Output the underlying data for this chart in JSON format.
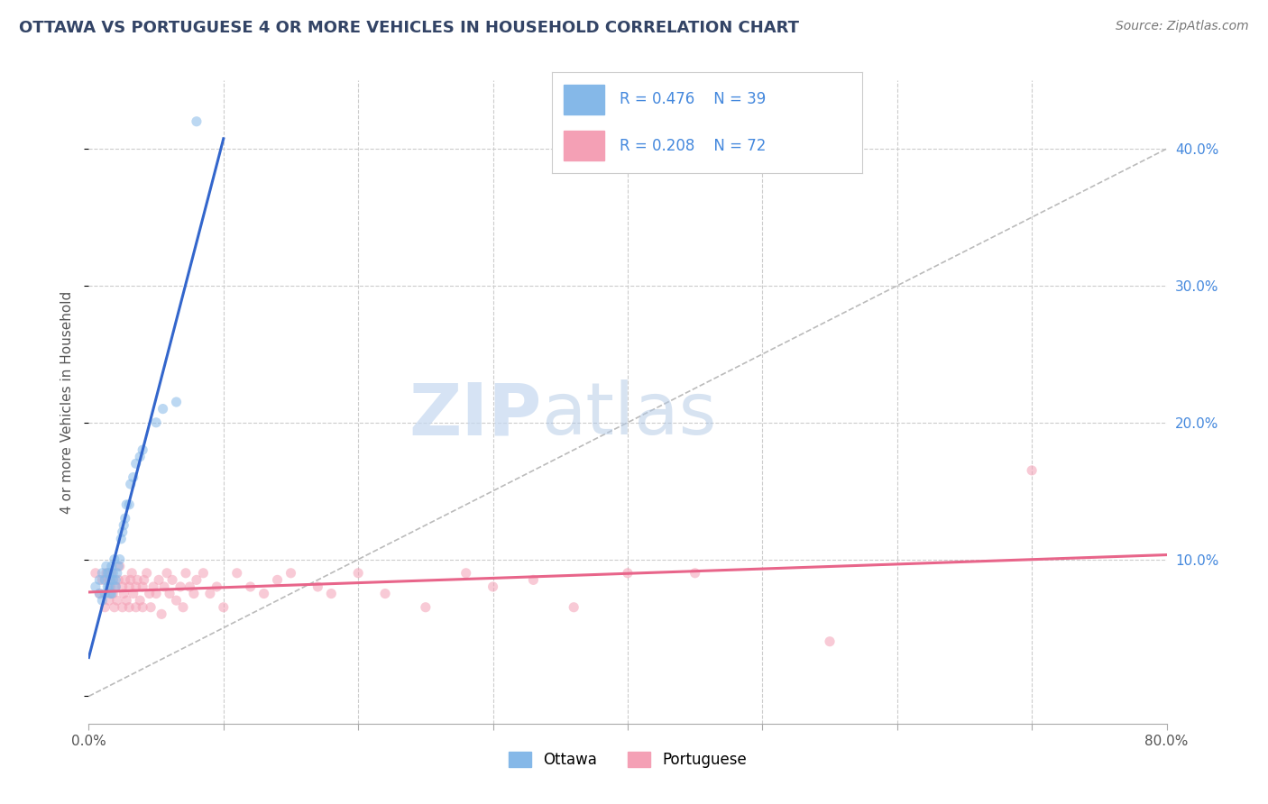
{
  "title": "OTTAWA VS PORTUGUESE 4 OR MORE VEHICLES IN HOUSEHOLD CORRELATION CHART",
  "source": "Source: ZipAtlas.com",
  "ylabel": "4 or more Vehicles in Household",
  "xlim": [
    0.0,
    0.8
  ],
  "ylim": [
    -0.02,
    0.45
  ],
  "ylim_display": [
    0.0,
    0.45
  ],
  "xticks": [
    0.0,
    0.1,
    0.2,
    0.3,
    0.4,
    0.5,
    0.6,
    0.7,
    0.8
  ],
  "yticks_right": [
    0.1,
    0.2,
    0.3,
    0.4
  ],
  "ytick_labels_right": [
    "10.0%",
    "20.0%",
    "30.0%",
    "40.0%"
  ],
  "grid_color": "#cccccc",
  "background_color": "#ffffff",
  "ottawa_color": "#85b8e8",
  "portuguese_color": "#f4a0b5",
  "trendline_ottawa_color": "#3366cc",
  "trendline_portuguese_color": "#e8658a",
  "diagonal_color": "#bbbbbb",
  "legend_r1": "0.476",
  "legend_n1": "39",
  "legend_r2": "0.208",
  "legend_n2": "72",
  "ottawa_scatter_x": [
    0.005,
    0.008,
    0.008,
    0.01,
    0.01,
    0.012,
    0.012,
    0.013,
    0.014,
    0.014,
    0.015,
    0.015,
    0.016,
    0.016,
    0.017,
    0.017,
    0.018,
    0.018,
    0.019,
    0.02,
    0.02,
    0.021,
    0.022,
    0.023,
    0.024,
    0.025,
    0.026,
    0.027,
    0.028,
    0.03,
    0.031,
    0.033,
    0.035,
    0.038,
    0.04,
    0.05,
    0.055,
    0.065,
    0.08
  ],
  "ottawa_scatter_y": [
    0.08,
    0.085,
    0.075,
    0.09,
    0.07,
    0.075,
    0.085,
    0.095,
    0.08,
    0.09,
    0.08,
    0.09,
    0.075,
    0.085,
    0.095,
    0.075,
    0.085,
    0.09,
    0.1,
    0.08,
    0.085,
    0.09,
    0.095,
    0.1,
    0.115,
    0.12,
    0.125,
    0.13,
    0.14,
    0.14,
    0.155,
    0.16,
    0.17,
    0.175,
    0.18,
    0.2,
    0.21,
    0.215,
    0.42
  ],
  "portuguese_scatter_x": [
    0.005,
    0.008,
    0.01,
    0.012,
    0.013,
    0.015,
    0.015,
    0.016,
    0.017,
    0.018,
    0.019,
    0.02,
    0.021,
    0.022,
    0.023,
    0.025,
    0.025,
    0.026,
    0.027,
    0.028,
    0.03,
    0.03,
    0.031,
    0.032,
    0.033,
    0.035,
    0.035,
    0.036,
    0.038,
    0.04,
    0.04,
    0.041,
    0.043,
    0.045,
    0.046,
    0.048,
    0.05,
    0.052,
    0.054,
    0.056,
    0.058,
    0.06,
    0.062,
    0.065,
    0.068,
    0.07,
    0.072,
    0.075,
    0.078,
    0.08,
    0.085,
    0.09,
    0.095,
    0.1,
    0.11,
    0.12,
    0.13,
    0.14,
    0.15,
    0.17,
    0.18,
    0.2,
    0.22,
    0.25,
    0.28,
    0.3,
    0.33,
    0.36,
    0.4,
    0.45,
    0.55,
    0.7
  ],
  "portuguese_scatter_y": [
    0.09,
    0.075,
    0.085,
    0.065,
    0.09,
    0.07,
    0.085,
    0.08,
    0.09,
    0.075,
    0.065,
    0.08,
    0.07,
    0.085,
    0.095,
    0.065,
    0.08,
    0.075,
    0.085,
    0.07,
    0.065,
    0.08,
    0.085,
    0.09,
    0.075,
    0.065,
    0.08,
    0.085,
    0.07,
    0.065,
    0.08,
    0.085,
    0.09,
    0.075,
    0.065,
    0.08,
    0.075,
    0.085,
    0.06,
    0.08,
    0.09,
    0.075,
    0.085,
    0.07,
    0.08,
    0.065,
    0.09,
    0.08,
    0.075,
    0.085,
    0.09,
    0.075,
    0.08,
    0.065,
    0.09,
    0.08,
    0.075,
    0.085,
    0.09,
    0.08,
    0.075,
    0.09,
    0.075,
    0.065,
    0.09,
    0.08,
    0.085,
    0.065,
    0.09,
    0.09,
    0.04,
    0.165
  ],
  "marker_size": 65,
  "marker_alpha": 0.55,
  "font_size_title": 13,
  "font_size_source": 10,
  "font_size_legend": 12,
  "font_size_ticks": 11,
  "font_size_ylabel": 11,
  "legend_color": "#4488dd",
  "trendline_ottawa_xmax": 0.1,
  "watermark_zip_color": "#c5d8f0",
  "watermark_atlas_color": "#b0c8e5"
}
